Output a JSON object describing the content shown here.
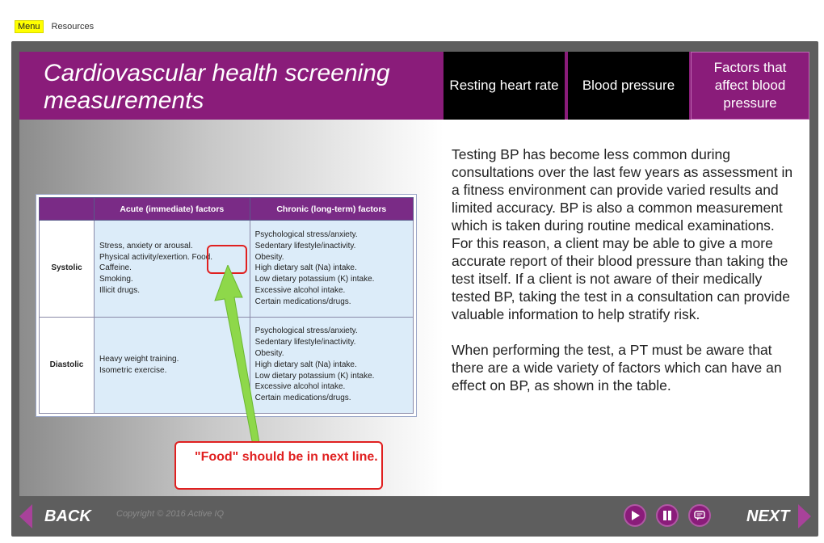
{
  "topmenu": {
    "menu_label": "Menu",
    "resources_label": "Resources"
  },
  "header": {
    "title": "Cardiovascular health screening measurements",
    "tabs": [
      {
        "label": "Resting heart rate"
      },
      {
        "label": "Blood pressure"
      },
      {
        "label": "Factors that affect blood pressure"
      }
    ]
  },
  "table": {
    "headers": [
      "",
      "Acute (immediate) factors",
      "Chronic (long-term) factors"
    ],
    "rows": [
      {
        "label": "Systolic",
        "acute": [
          "Stress, anxiety or arousal.",
          "Physical activity/exertion. Food.",
          "Caffeine.",
          "Smoking.",
          "Illicit drugs."
        ],
        "chronic": [
          "Psychological stress/anxiety.",
          "Sedentary lifestyle/inactivity.",
          "Obesity.",
          "High dietary salt (Na) intake.",
          "Low dietary potassium (K) intake.",
          "Excessive alcohol intake.",
          "Certain medications/drugs."
        ]
      },
      {
        "label": "Diastolic",
        "acute": [
          "Heavy weight training.",
          "Isometric exercise."
        ],
        "chronic": [
          "Psychological stress/anxiety.",
          "Sedentary lifestyle/inactivity.",
          "Obesity.",
          "High dietary salt (Na) intake.",
          "Low dietary potassium (K) intake.",
          "Excessive alcohol intake.",
          "Certain medications/drugs."
        ]
      }
    ]
  },
  "body": {
    "paragraph1": "Testing BP has become less common during consultations over the last few years as assessment in a fitness environment can provide varied results and limited accuracy. BP is also a common measurement which is taken during routine medical examinations. For this reason, a client may be able to give a more accurate report of their blood pressure than taking the test itself. If a client is not aware of their medically tested BP, taking the test in a consultation can provide valuable information to help stratify risk.",
    "paragraph2": "When performing the test, a PT must be aware that there are a wide variety of factors which can have an effect on BP, as shown in the table."
  },
  "annotation": {
    "text": "\"Food\" should be in next line."
  },
  "footer": {
    "back_label": "BACK",
    "next_label": "NEXT",
    "copyright": "Copyright © 2016 Active IQ"
  },
  "colors": {
    "brand": "#8a1c7a",
    "annotation": "#e02020",
    "arrow": "#8ed84a"
  },
  "icons": {
    "play": "play-icon",
    "pause": "pause-icon",
    "captions": "captions-icon",
    "back": "back-arrow-icon",
    "next": "next-arrow-icon"
  }
}
